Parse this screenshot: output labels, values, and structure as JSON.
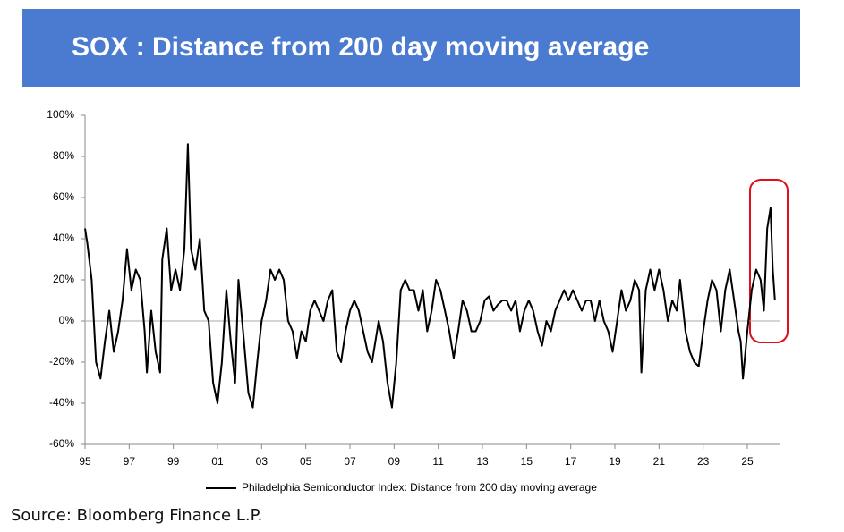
{
  "chart_data": {
    "type": "line",
    "title": "SOX : Distance from 200 day moving average",
    "source": "Source: Bloomberg Finance L.P.",
    "series": [
      {
        "name": "Philadelphia Semiconductor Index:  Distance from 200 day moving average",
        "color": "#000000",
        "x": [
          1995.0,
          1995.1,
          1995.3,
          1995.5,
          1995.7,
          1995.9,
          1996.1,
          1996.3,
          1996.5,
          1996.7,
          1996.9,
          1997.1,
          1997.3,
          1997.5,
          1997.7,
          1997.8,
          1998.0,
          1998.2,
          1998.4,
          1998.5,
          1998.7,
          1998.9,
          1999.1,
          1999.3,
          1999.5,
          1999.66,
          1999.8,
          2000.0,
          2000.2,
          2000.4,
          2000.6,
          2000.8,
          2001.0,
          2001.2,
          2001.4,
          2001.6,
          2001.8,
          2001.95,
          2002.2,
          2002.4,
          2002.6,
          2002.8,
          2003.0,
          2003.2,
          2003.4,
          2003.6,
          2003.8,
          2004.0,
          2004.2,
          2004.4,
          2004.6,
          2004.8,
          2005.0,
          2005.2,
          2005.4,
          2005.6,
          2005.8,
          2006.0,
          2006.2,
          2006.4,
          2006.6,
          2006.8,
          2007.0,
          2007.2,
          2007.4,
          2007.6,
          2007.8,
          2008.0,
          2008.3,
          2008.5,
          2008.7,
          2008.9,
          2009.1,
          2009.3,
          2009.5,
          2009.7,
          2009.9,
          2010.1,
          2010.3,
          2010.5,
          2010.7,
          2010.9,
          2011.1,
          2011.3,
          2011.5,
          2011.7,
          2011.9,
          2012.1,
          2012.3,
          2012.5,
          2012.7,
          2012.9,
          2013.1,
          2013.3,
          2013.5,
          2013.7,
          2013.9,
          2014.1,
          2014.3,
          2014.5,
          2014.7,
          2014.9,
          2015.1,
          2015.3,
          2015.5,
          2015.7,
          2015.9,
          2016.1,
          2016.3,
          2016.5,
          2016.7,
          2016.9,
          2017.1,
          2017.3,
          2017.5,
          2017.7,
          2017.9,
          2018.1,
          2018.3,
          2018.5,
          2018.7,
          2018.9,
          2019.1,
          2019.3,
          2019.5,
          2019.7,
          2019.9,
          2020.1,
          2020.2,
          2020.4,
          2020.6,
          2020.8,
          2021.0,
          2021.2,
          2021.4,
          2021.6,
          2021.8,
          2021.95,
          2022.2,
          2022.4,
          2022.6,
          2022.8,
          2023.0,
          2023.2,
          2023.4,
          2023.6,
          2023.8,
          2024.0,
          2024.2,
          2024.4,
          2024.6,
          2024.7,
          2024.8,
          2025.0,
          2025.2,
          2025.4,
          2025.6,
          2025.75,
          2025.9,
          2026.05,
          2026.15,
          2026.25
        ],
        "values": [
          45,
          38,
          20,
          -20,
          -28,
          -10,
          5,
          -15,
          -5,
          10,
          35,
          15,
          25,
          20,
          -5,
          -25,
          5,
          -15,
          -25,
          30,
          45,
          15,
          25,
          15,
          35,
          86,
          35,
          25,
          40,
          5,
          0,
          -30,
          -40,
          -20,
          15,
          -10,
          -30,
          20,
          -10,
          -35,
          -42,
          -20,
          0,
          10,
          25,
          20,
          25,
          20,
          0,
          -5,
          -18,
          -5,
          -10,
          5,
          10,
          5,
          0,
          10,
          15,
          -15,
          -20,
          -5,
          5,
          10,
          5,
          -5,
          -15,
          -20,
          0,
          -10,
          -30,
          -42,
          -20,
          15,
          20,
          15,
          15,
          5,
          15,
          -5,
          5,
          20,
          15,
          5,
          -5,
          -18,
          -5,
          10,
          5,
          -5,
          -5,
          0,
          10,
          12,
          5,
          8,
          10,
          10,
          5,
          10,
          -5,
          5,
          10,
          5,
          -5,
          -12,
          0,
          -5,
          5,
          10,
          15,
          10,
          15,
          10,
          5,
          10,
          10,
          0,
          10,
          0,
          -5,
          -15,
          0,
          15,
          5,
          10,
          20,
          15,
          -25,
          15,
          25,
          15,
          25,
          15,
          0,
          10,
          5,
          20,
          -5,
          -15,
          -20,
          -22,
          -5,
          10,
          20,
          15,
          -5,
          15,
          25,
          10,
          -5,
          -10,
          -28,
          -5,
          15,
          25,
          20,
          5,
          45,
          55,
          25,
          10
        ]
      }
    ],
    "xlim": [
      1995,
      2026.5
    ],
    "xticks": [
      {
        "value": 1995,
        "label": "95"
      },
      {
        "value": 1997,
        "label": "97"
      },
      {
        "value": 1999,
        "label": "99"
      },
      {
        "value": 2001,
        "label": "01"
      },
      {
        "value": 2003,
        "label": "03"
      },
      {
        "value": 2005,
        "label": "05"
      },
      {
        "value": 2007,
        "label": "07"
      },
      {
        "value": 2009,
        "label": "09"
      },
      {
        "value": 2011,
        "label": "11"
      },
      {
        "value": 2013,
        "label": "13"
      },
      {
        "value": 2015,
        "label": "15"
      },
      {
        "value": 2017,
        "label": "17"
      },
      {
        "value": 2019,
        "label": "19"
      },
      {
        "value": 2021,
        "label": "21"
      },
      {
        "value": 2023,
        "label": "23"
      },
      {
        "value": 2025,
        "label": "25"
      }
    ],
    "ylim": [
      -60,
      100
    ],
    "yticks": [
      {
        "value": -60,
        "label": "-60%"
      },
      {
        "value": -40,
        "label": "-40%"
      },
      {
        "value": -20,
        "label": "-20%"
      },
      {
        "value": 0,
        "label": "0%"
      },
      {
        "value": 20,
        "label": "20%"
      },
      {
        "value": 40,
        "label": "40%"
      },
      {
        "value": 60,
        "label": "60%"
      },
      {
        "value": 80,
        "label": "80%"
      },
      {
        "value": 100,
        "label": "100%"
      }
    ],
    "grid": false,
    "legend": "bottom"
  }
}
